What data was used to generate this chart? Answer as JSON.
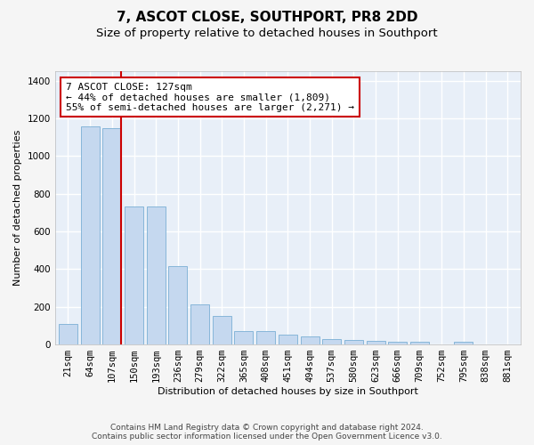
{
  "title": "7, ASCOT CLOSE, SOUTHPORT, PR8 2DD",
  "subtitle": "Size of property relative to detached houses in Southport",
  "xlabel": "Distribution of detached houses by size in Southport",
  "ylabel": "Number of detached properties",
  "categories": [
    "21sqm",
    "64sqm",
    "107sqm",
    "150sqm",
    "193sqm",
    "236sqm",
    "279sqm",
    "322sqm",
    "365sqm",
    "408sqm",
    "451sqm",
    "494sqm",
    "537sqm",
    "580sqm",
    "623sqm",
    "666sqm",
    "709sqm",
    "752sqm",
    "795sqm",
    "838sqm",
    "881sqm"
  ],
  "values": [
    110,
    1155,
    1150,
    730,
    730,
    415,
    215,
    150,
    70,
    70,
    50,
    45,
    30,
    25,
    20,
    15,
    15,
    0,
    15,
    0,
    0
  ],
  "bar_color": "#c5d8ef",
  "bar_edge_color": "#7aafd4",
  "red_line_x": 2.43,
  "red_line_color": "#cc0000",
  "annotation_text": "7 ASCOT CLOSE: 127sqm\n← 44% of detached houses are smaller (1,809)\n55% of semi-detached houses are larger (2,271) →",
  "annotation_box_color": "#ffffff",
  "annotation_box_edge": "#cc0000",
  "ylim": [
    0,
    1450
  ],
  "yticks": [
    0,
    200,
    400,
    600,
    800,
    1000,
    1200,
    1400
  ],
  "background_color": "#e8eff8",
  "grid_color": "#ffffff",
  "fig_background": "#f5f5f5",
  "footer_line1": "Contains HM Land Registry data © Crown copyright and database right 2024.",
  "footer_line2": "Contains public sector information licensed under the Open Government Licence v3.0.",
  "title_fontsize": 11,
  "subtitle_fontsize": 9.5,
  "axis_label_fontsize": 8,
  "tick_fontsize": 7.5,
  "annotation_fontsize": 8,
  "footer_fontsize": 6.5
}
